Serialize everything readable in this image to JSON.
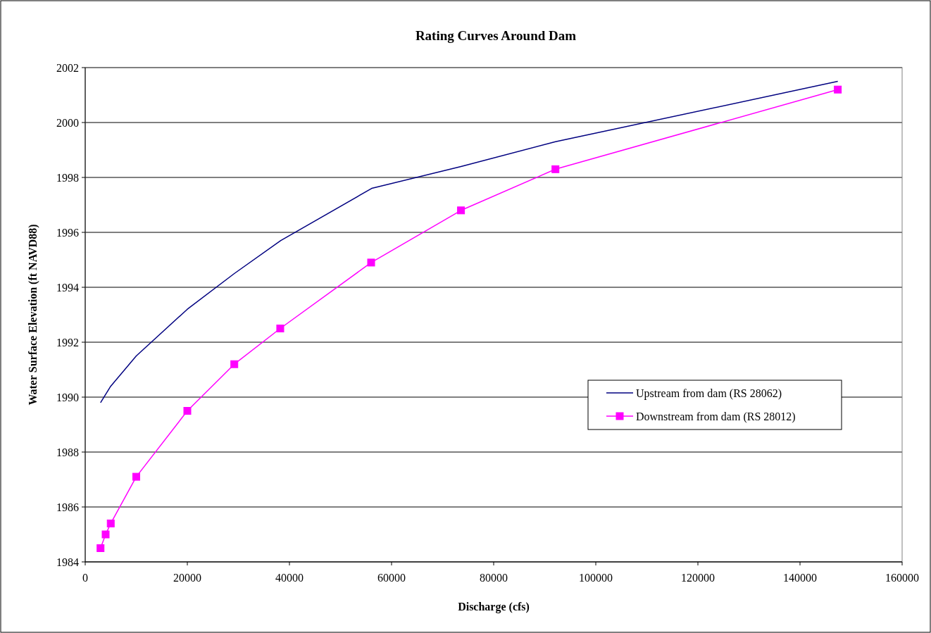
{
  "chart_data": {
    "type": "line",
    "title": "Rating Curves Around Dam",
    "xlabel": "Discharge (cfs)",
    "ylabel": "Water Surface Elevation (ft NAVD88)",
    "xlim": [
      0,
      160000
    ],
    "xticks": [
      0,
      20000,
      40000,
      60000,
      80000,
      100000,
      120000,
      140000,
      160000
    ],
    "ylim": [
      1984,
      2002
    ],
    "yticks": [
      1984,
      1986,
      1988,
      1990,
      1992,
      1994,
      1996,
      1998,
      2000,
      2002
    ],
    "grid": "y",
    "legend": "right",
    "series": [
      {
        "name": "Upstream from dam (RS 28062)",
        "color": "#000080",
        "marker": "none",
        "x": [
          3000,
          5000,
          10000,
          20000,
          29200,
          38300,
          56100,
          73600,
          92100,
          147400
        ],
        "values": [
          1989.8,
          1990.4,
          1991.5,
          1993.2,
          1994.5,
          1995.7,
          1997.6,
          1998.4,
          1999.3,
          2001.5
        ]
      },
      {
        "name": "Downstream from dam (RS 28012)",
        "color": "#ff00ff",
        "marker": "square",
        "x": [
          3000,
          4000,
          5000,
          10000,
          20000,
          29200,
          38200,
          56000,
          73600,
          92100,
          147400
        ],
        "values": [
          1984.5,
          1985.0,
          1985.4,
          1987.1,
          1989.5,
          1991.2,
          1992.5,
          1994.9,
          1996.8,
          1998.3,
          2001.2
        ]
      }
    ]
  }
}
